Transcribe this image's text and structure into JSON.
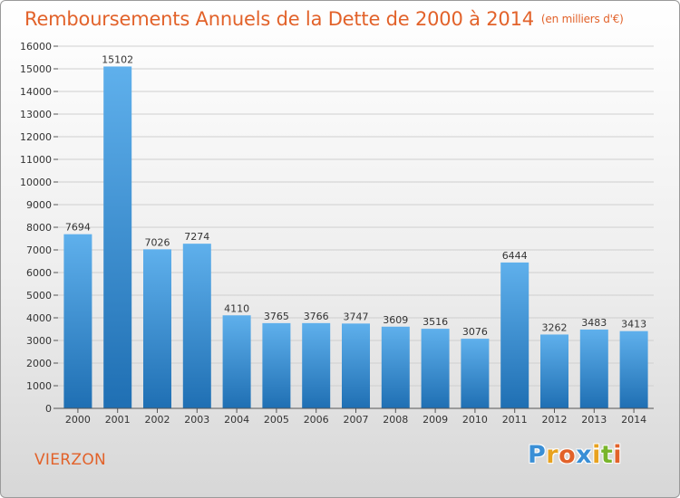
{
  "chart_data": {
    "type": "bar",
    "title": "Remboursements Annuels de la Dette de 2000 à 2014",
    "unit_label": "(en milliers d'€)",
    "categories": [
      "2000",
      "2001",
      "2002",
      "2003",
      "2004",
      "2005",
      "2006",
      "2007",
      "2008",
      "2009",
      "2010",
      "2011",
      "2012",
      "2013",
      "2014"
    ],
    "values": [
      7694,
      15102,
      7026,
      7274,
      4110,
      3765,
      3766,
      3747,
      3609,
      3516,
      3076,
      6444,
      3262,
      3483,
      3413
    ],
    "ylim": [
      0,
      16000
    ],
    "yticks": [
      "0",
      "1000",
      "2000",
      "3000",
      "4000",
      "5000",
      "6000",
      "7000",
      "8000",
      "9000",
      "10000",
      "11000",
      "12000",
      "13000",
      "14000",
      "15000",
      "16000"
    ],
    "grid": true,
    "xlabel": "",
    "ylabel": ""
  },
  "footer": {
    "city": "VIERZON"
  },
  "logo": {
    "letters": [
      "P",
      "r",
      "o",
      "x",
      "i",
      "t",
      "i"
    ],
    "colors": [
      "#3a8fd6",
      "#e8a21f",
      "#e2622a",
      "#3a8fd6",
      "#e8a21f",
      "#79b52b",
      "#e2622a"
    ]
  },
  "colors": {
    "accent": "#e2622a",
    "bar_top": "#5fb0ec",
    "bar_bottom": "#1f6fb3",
    "grid": "#cfcfcf"
  }
}
